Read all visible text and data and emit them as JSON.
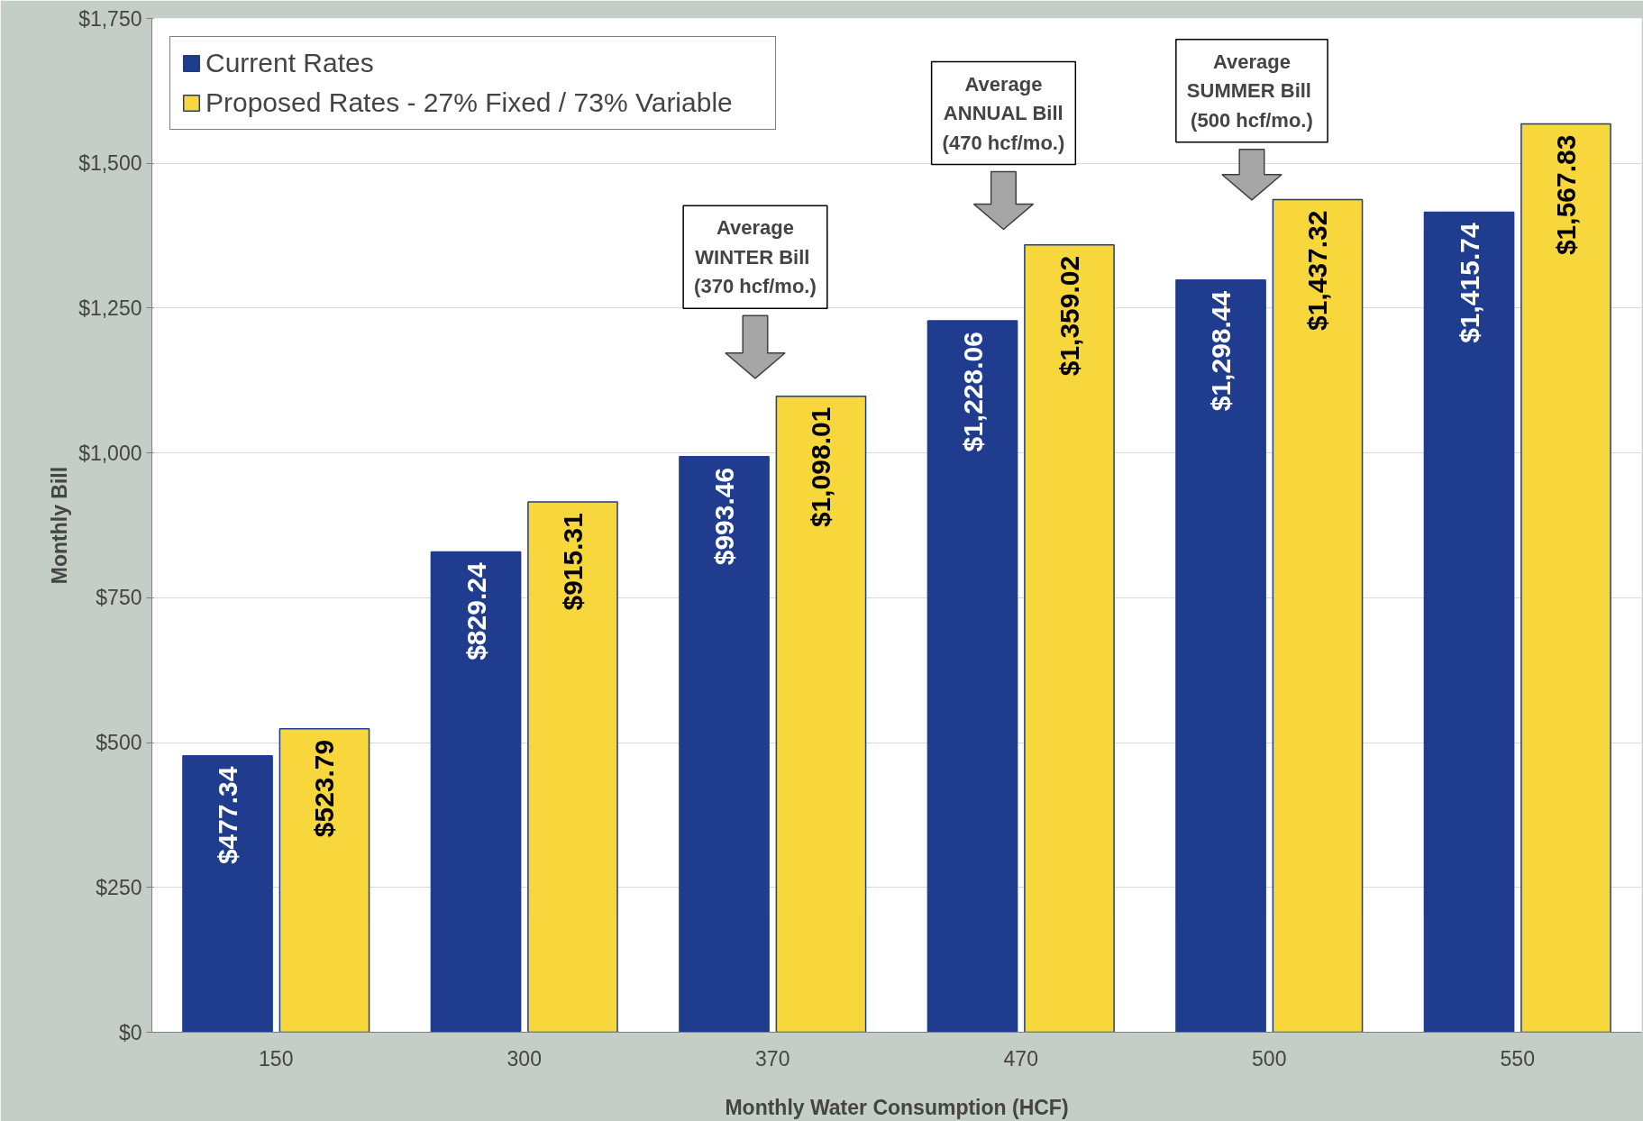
{
  "chart_data": {
    "type": "bar",
    "xlabel": "Monthly Water Consumption (HCF)",
    "ylabel": "Monthly Bill",
    "categories": [
      "150",
      "300",
      "370",
      "470",
      "500",
      "550"
    ],
    "series": [
      {
        "name": "Current Rates",
        "color": "#1f3c8f",
        "values": [
          477.34,
          829.24,
          993.46,
          1228.06,
          1298.44,
          1415.74
        ]
      },
      {
        "name": "Proposed Rates - 27% Fixed / 73% Variable",
        "color": "#f8d73c",
        "values": [
          523.79,
          915.31,
          1098.01,
          1359.02,
          1437.32,
          1567.83
        ]
      }
    ],
    "value_labels": [
      [
        "$477.34",
        "$829.24",
        "$993.46",
        "$1,228.06",
        "$1,298.44",
        "$1,415.74"
      ],
      [
        "$523.79",
        "$915.31",
        "$1,098.01",
        "$1,359.02",
        "$1,437.32",
        "$1,567.83"
      ]
    ],
    "ylim": [
      0,
      1750
    ],
    "yticks": [
      {
        "value": 0,
        "label": "$0"
      },
      {
        "value": 250,
        "label": "$250"
      },
      {
        "value": 500,
        "label": "$500"
      },
      {
        "value": 750,
        "label": "$750"
      },
      {
        "value": 1000,
        "label": "$1,000"
      },
      {
        "value": 1250,
        "label": "$1,250"
      },
      {
        "value": 1500,
        "label": "$1,500"
      },
      {
        "value": 1750,
        "label": "$1,750"
      }
    ],
    "grid": "y",
    "legend": "top left",
    "annotations": [
      "Average\nWINTER  Bill\n(370 hcf/mo.)",
      "Average\nANNUAL Bill\n(470 hcf/mo.)",
      "Average\nSUMMER  Bill\n(500 hcf/mo.)"
    ]
  }
}
